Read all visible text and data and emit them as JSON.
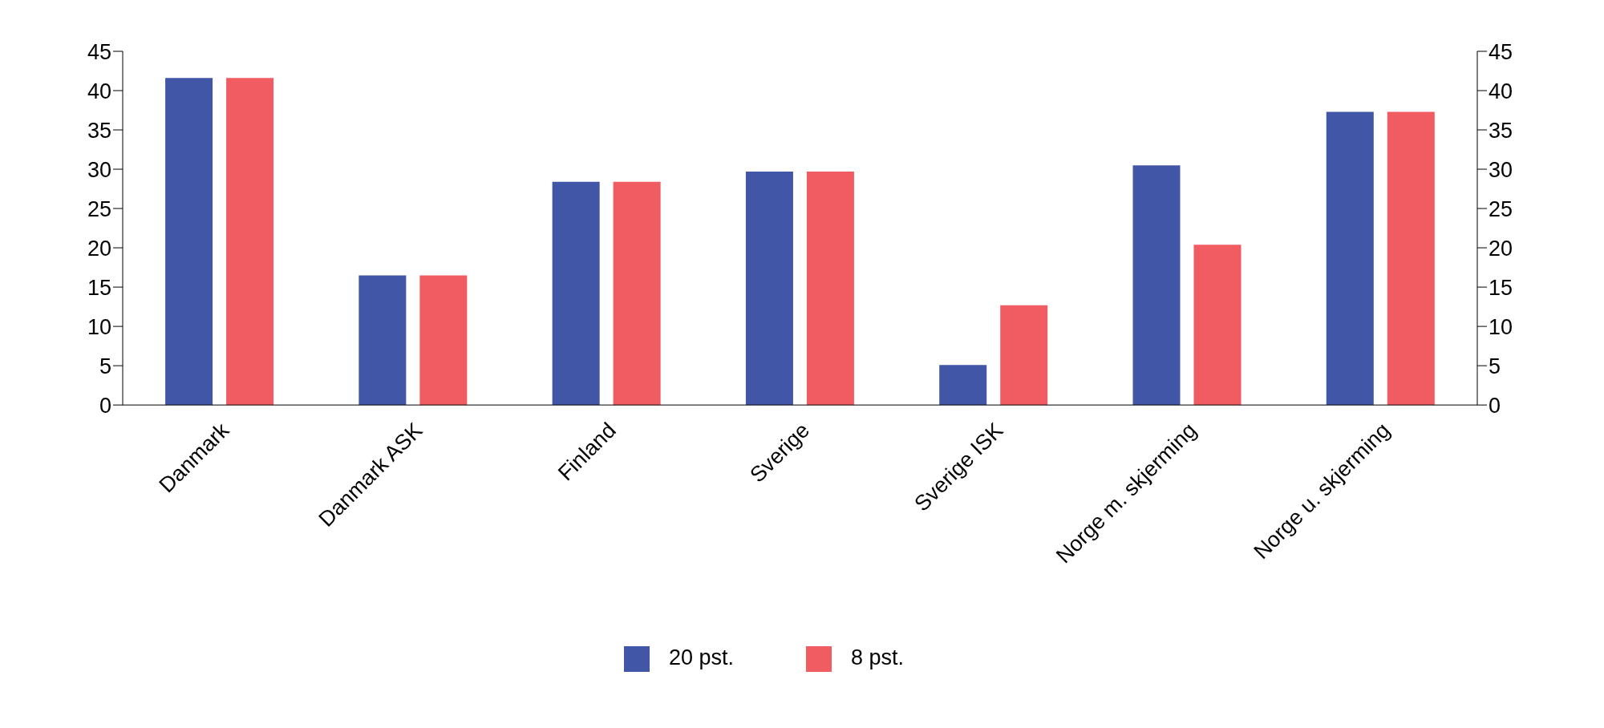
{
  "chart_data": {
    "type": "bar",
    "categories": [
      "Danmark",
      "Danmark ASK",
      "Finland",
      "Sverige",
      "Sverige ISK",
      "Norge m. skjerming",
      "Norge u. skjerming"
    ],
    "series": [
      {
        "name": "20 pst.",
        "color": "#4156a6",
        "values": [
          41.6,
          16.5,
          28.4,
          29.7,
          5.1,
          30.5,
          37.3
        ]
      },
      {
        "name": "8 pst.",
        "color": "#f15c62",
        "values": [
          41.6,
          16.5,
          28.4,
          29.7,
          12.7,
          20.4,
          37.3
        ]
      }
    ],
    "ylim": [
      0,
      45
    ],
    "yticks": [
      0,
      5,
      10,
      15,
      20,
      25,
      30,
      35,
      40,
      45
    ],
    "y2lim": [
      0,
      45
    ],
    "y2ticks": [
      0,
      5,
      10,
      15,
      20,
      25,
      30,
      35,
      40,
      45
    ],
    "grid": false,
    "legend": "bottom"
  }
}
